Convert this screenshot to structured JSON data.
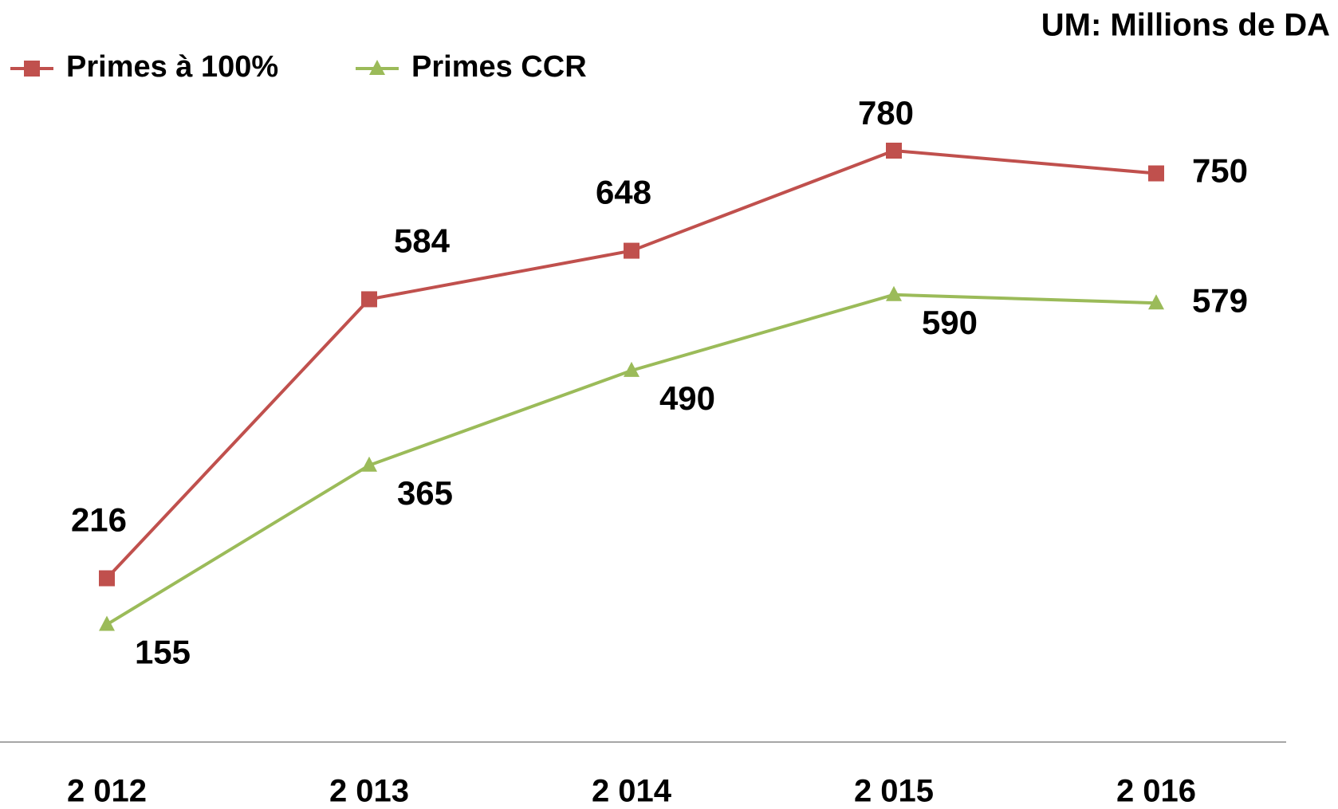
{
  "chart_data": {
    "type": "line",
    "title": "UM: Millions de DA",
    "categories": [
      "2 012",
      "2 013",
      "2 014",
      "2 015",
      "2 016"
    ],
    "series": [
      {
        "name": "Primes à 100%",
        "color": "#c0504d",
        "marker": "square",
        "values": [
          216,
          584,
          648,
          780,
          750
        ]
      },
      {
        "name": "Primes CCR",
        "color": "#9bbb59",
        "marker": "triangle",
        "values": [
          155,
          365,
          490,
          590,
          579
        ]
      }
    ],
    "legend": "top-left",
    "grid": false
  }
}
